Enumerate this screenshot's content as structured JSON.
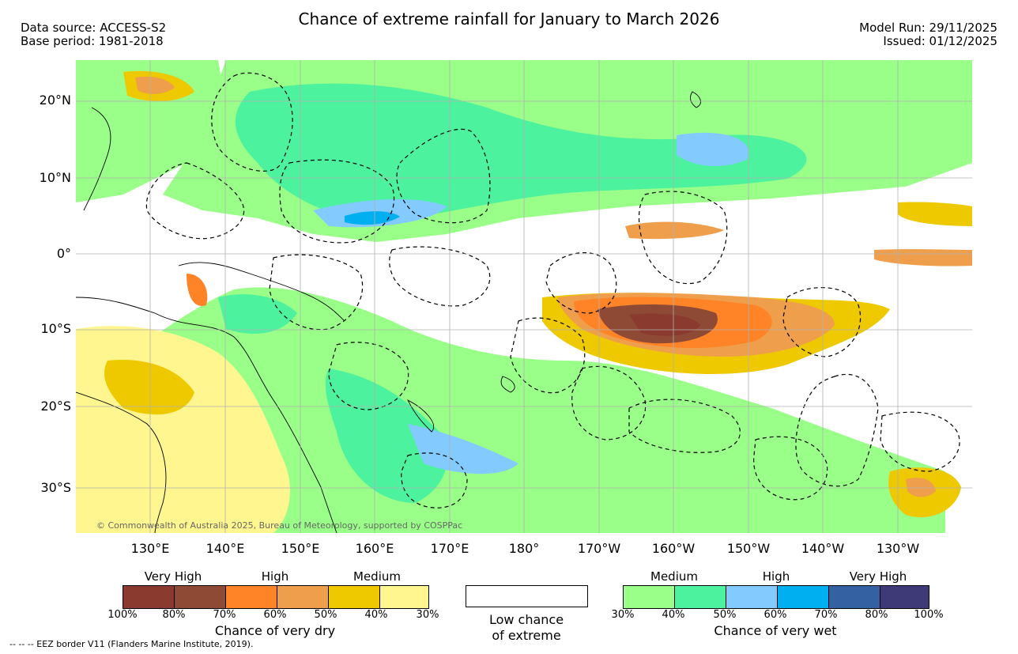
{
  "title": "Chance of extreme rainfall for January to March 2026",
  "data_source": "Data source: ACCESS-S2",
  "base_period": "Base period: 1981-2018",
  "model_run": "Model Run: 29/11/2025",
  "issued": "Issued: 01/12/2025",
  "copyright": "© Commonwealth of Australia 2025, Bureau of Meteorology, supported by COSPPac",
  "footer": "-- -- -- EEZ border V11 (Flanders Marine Institute, 2019).",
  "lat_labels": [
    "20°N",
    "10°N",
    "0°",
    "10°S",
    "20°S",
    "30°S"
  ],
  "lon_labels": [
    "130°E",
    "140°E",
    "150°E",
    "160°E",
    "170°E",
    "180°",
    "170°W",
    "160°W",
    "150°W",
    "140°W",
    "130°W"
  ],
  "dry_legend": {
    "title": "Chance of very dry",
    "categories": [
      "Very High",
      "High",
      "Medium"
    ],
    "ticks": [
      "100%",
      "80%",
      "70%",
      "60%",
      "50%",
      "40%",
      "30%"
    ],
    "colors": [
      "#8b3a30",
      "#8f4a35",
      "#ff8427",
      "#ef9f4c",
      "#eec900",
      "#fff68f"
    ]
  },
  "low_legend": {
    "line1": "Low chance",
    "line2": "of extreme"
  },
  "wet_legend": {
    "title": "Chance of very wet",
    "categories": [
      "Medium",
      "High",
      "Very High"
    ],
    "ticks": [
      "30%",
      "40%",
      "50%",
      "60%",
      "70%",
      "80%",
      "100%"
    ],
    "colors": [
      "#9aff88",
      "#4cf29d",
      "#83cbff",
      "#00aff0",
      "#3461a1",
      "#3e3a78"
    ]
  }
}
